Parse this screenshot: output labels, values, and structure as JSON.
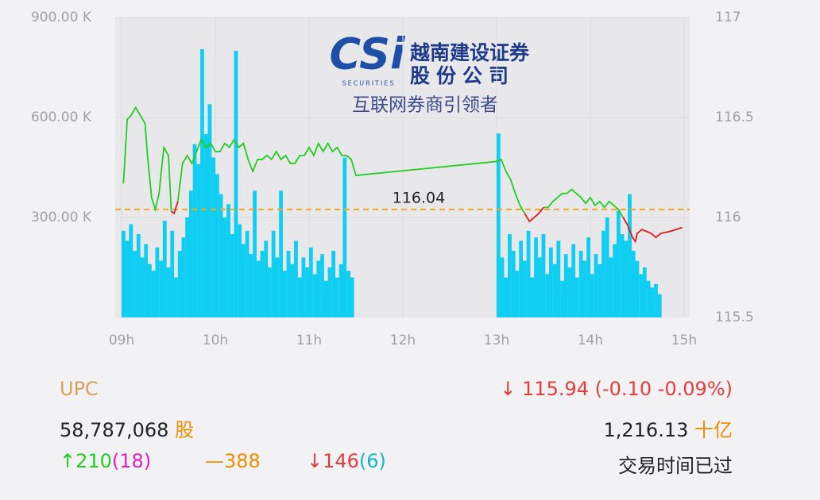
{
  "chart_data": {
    "type": "stock",
    "logo": {
      "mark": "CSi",
      "tagline": "SECURITIES",
      "name_line1": "越南建设证券",
      "name_line2": "股份公司",
      "slogan": "互联网券商引领者"
    },
    "xlim": [
      8.932,
      15.06
    ],
    "xticks": [
      {
        "value": 9,
        "label": "09h"
      },
      {
        "value": 10,
        "label": "10h"
      },
      {
        "value": 11,
        "label": "11h"
      },
      {
        "value": 12,
        "label": "12h"
      },
      {
        "value": 13,
        "label": "13h"
      },
      {
        "value": 14,
        "label": "14h"
      },
      {
        "value": 15,
        "label": "15h"
      }
    ],
    "ylim": [
      0,
      900000
    ],
    "yticks": [
      {
        "value": 300000,
        "label": "300.00 K"
      },
      {
        "value": 600000,
        "label": "600.00 K"
      },
      {
        "value": 900000,
        "label": "900.00 K"
      }
    ],
    "y2lim": [
      115.5,
      117
    ],
    "y2ticks": [
      115.5,
      116,
      116.5,
      117
    ],
    "grid": true,
    "volume": {
      "color": "#10cdf2",
      "x": [
        9.02,
        9.06,
        9.1,
        9.14,
        9.18,
        9.22,
        9.26,
        9.3,
        9.34,
        9.38,
        9.42,
        9.46,
        9.5,
        9.54,
        9.58,
        9.62,
        9.66,
        9.7,
        9.74,
        9.78,
        9.82,
        9.86,
        9.9,
        9.94,
        9.98,
        10.02,
        10.06,
        10.1,
        10.14,
        10.18,
        10.22,
        10.26,
        10.3,
        10.34,
        10.38,
        10.42,
        10.46,
        10.5,
        10.54,
        10.58,
        10.62,
        10.66,
        10.7,
        10.74,
        10.78,
        10.82,
        10.86,
        10.9,
        10.94,
        10.98,
        11.02,
        11.06,
        11.1,
        11.14,
        11.18,
        11.22,
        11.26,
        11.3,
        11.34,
        11.38,
        11.42,
        11.46,
        13.02,
        13.06,
        13.1,
        13.14,
        13.18,
        13.22,
        13.26,
        13.3,
        13.34,
        13.38,
        13.42,
        13.46,
        13.5,
        13.54,
        13.58,
        13.62,
        13.66,
        13.7,
        13.74,
        13.78,
        13.82,
        13.86,
        13.9,
        13.94,
        13.98,
        14.02,
        14.06,
        14.1,
        14.14,
        14.18,
        14.22,
        14.26,
        14.3,
        14.34,
        14.38,
        14.42,
        14.46,
        14.5,
        14.54,
        14.58,
        14.62,
        14.66,
        14.7,
        14.74
      ],
      "values": [
        260000,
        230000,
        280000,
        200000,
        250000,
        180000,
        220000,
        160000,
        140000,
        210000,
        170000,
        290000,
        150000,
        260000,
        120000,
        200000,
        240000,
        300000,
        380000,
        520000,
        460000,
        805000,
        550000,
        640000,
        480000,
        430000,
        370000,
        300000,
        340000,
        250000,
        800000,
        280000,
        220000,
        260000,
        190000,
        380000,
        170000,
        200000,
        230000,
        150000,
        260000,
        180000,
        380000,
        140000,
        200000,
        160000,
        230000,
        120000,
        180000,
        150000,
        210000,
        130000,
        170000,
        190000,
        110000,
        150000,
        200000,
        120000,
        160000,
        480000,
        140000,
        120000,
        552000,
        180000,
        120000,
        250000,
        200000,
        140000,
        230000,
        170000,
        260000,
        120000,
        240000,
        180000,
        250000,
        130000,
        210000,
        160000,
        230000,
        110000,
        190000,
        150000,
        220000,
        120000,
        200000,
        170000,
        240000,
        130000,
        190000,
        160000,
        260000,
        300000,
        180000,
        220000,
        320000,
        250000,
        230000,
        370000,
        200000,
        170000,
        130000,
        150000,
        110000,
        90000,
        100000,
        70000
      ]
    },
    "price": {
      "axis": "y2",
      "up_color": "#22cc22",
      "down_color": "#e01818",
      "x": [
        9.02,
        9.06,
        9.1,
        9.15,
        9.2,
        9.25,
        9.28,
        9.32,
        9.36,
        9.4,
        9.45,
        9.5,
        9.53,
        9.56,
        9.6,
        9.65,
        9.7,
        9.75,
        9.8,
        9.85,
        9.9,
        9.95,
        10.0,
        10.05,
        10.1,
        10.15,
        10.2,
        10.25,
        10.3,
        10.35,
        10.4,
        10.45,
        10.5,
        10.55,
        10.6,
        10.65,
        10.7,
        10.75,
        10.8,
        10.85,
        10.9,
        10.95,
        11.0,
        11.05,
        11.1,
        11.15,
        11.2,
        11.25,
        11.3,
        11.35,
        11.4,
        11.45,
        11.5,
        13.0,
        13.05,
        13.1,
        13.15,
        13.2,
        13.25,
        13.3,
        13.35,
        13.4,
        13.45,
        13.5,
        13.55,
        13.6,
        13.65,
        13.7,
        13.75,
        13.8,
        13.85,
        13.9,
        13.95,
        14.0,
        14.05,
        14.1,
        14.15,
        14.2,
        14.25,
        14.3,
        14.35,
        14.4,
        14.45,
        14.48,
        14.5,
        14.55,
        14.6,
        14.65,
        14.7,
        14.75,
        14.85,
        14.98
      ],
      "values": [
        116.17,
        116.49,
        116.51,
        116.55,
        116.51,
        116.47,
        116.29,
        116.1,
        116.04,
        116.12,
        116.35,
        116.31,
        116.03,
        116.02,
        116.08,
        116.27,
        116.31,
        116.27,
        116.33,
        116.39,
        116.35,
        116.37,
        116.33,
        116.33,
        116.37,
        116.35,
        116.39,
        116.35,
        116.37,
        116.29,
        116.23,
        116.29,
        116.29,
        116.31,
        116.29,
        116.33,
        116.29,
        116.31,
        116.27,
        116.27,
        116.31,
        116.31,
        116.35,
        116.31,
        116.37,
        116.33,
        116.37,
        116.33,
        116.35,
        116.31,
        116.31,
        116.29,
        116.21,
        116.28,
        116.29,
        116.23,
        116.19,
        116.12,
        116.06,
        116.02,
        115.98,
        116.0,
        116.02,
        116.05,
        116.05,
        116.08,
        116.1,
        116.12,
        116.12,
        116.14,
        116.12,
        116.1,
        116.07,
        116.1,
        116.06,
        116.08,
        116.05,
        116.08,
        116.06,
        116.04,
        116.0,
        115.96,
        115.9,
        115.88,
        115.92,
        115.94,
        115.93,
        115.92,
        115.9,
        115.92,
        115.93,
        115.95
      ]
    },
    "reference": {
      "value": 116.04,
      "color": "#f5a623"
    }
  },
  "info": {
    "symbol": "UPC",
    "price": "115.94 (-0.10 -0.09%)",
    "volume": "58,787,068",
    "volume_unit": "股",
    "value": "1,216.13",
    "value_unit": "十亿",
    "up": "210",
    "up_limit": "(18)",
    "flat": "388",
    "down": "146",
    "down_limit": "(6)",
    "status": "交易时间已过"
  }
}
